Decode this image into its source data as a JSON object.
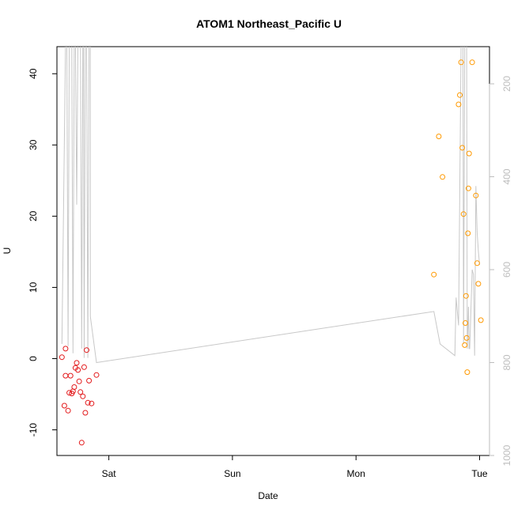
{
  "chart_data": {
    "type": "scatter",
    "title": "ATOM1 Northeast_Pacific U",
    "xlabel": "Date",
    "ylabel": "U",
    "x_ticks": [
      "Sat",
      "Sun",
      "Mon",
      "Tue"
    ],
    "x_tick_positions": [
      0.3,
      1.3,
      2.3,
      3.3
    ],
    "xlim": [
      -0.12,
      3.38
    ],
    "ylim": [
      -13.6,
      43.8
    ],
    "y_ticks": [
      -10,
      0,
      10,
      20,
      30,
      40
    ],
    "y2_ticks": [
      200,
      400,
      600,
      800,
      1000
    ],
    "y2lim": [
      1000,
      120
    ],
    "series": [
      {
        "color": "#e31a1c",
        "points": [
          {
            "x": -0.08,
            "y": 0.2
          },
          {
            "x": -0.06,
            "y": -6.6
          },
          {
            "x": -0.05,
            "y": 1.4
          },
          {
            "x": -0.05,
            "y": -2.4
          },
          {
            "x": -0.03,
            "y": -7.3
          },
          {
            "x": -0.02,
            "y": -4.8
          },
          {
            "x": -0.01,
            "y": -2.4
          },
          {
            "x": 0.0,
            "y": -4.9
          },
          {
            "x": 0.01,
            "y": -4.6
          },
          {
            "x": 0.02,
            "y": -4.0
          },
          {
            "x": 0.03,
            "y": -1.3
          },
          {
            "x": 0.04,
            "y": -0.6
          },
          {
            "x": 0.05,
            "y": -1.6
          },
          {
            "x": 0.06,
            "y": -3.2
          },
          {
            "x": 0.07,
            "y": -4.7
          },
          {
            "x": 0.08,
            "y": -11.8
          },
          {
            "x": 0.09,
            "y": -5.3
          },
          {
            "x": 0.1,
            "y": -1.2
          },
          {
            "x": 0.11,
            "y": -7.6
          },
          {
            "x": 0.12,
            "y": 1.2
          },
          {
            "x": 0.13,
            "y": -6.2
          },
          {
            "x": 0.14,
            "y": -3.1
          },
          {
            "x": 0.16,
            "y": -6.3
          },
          {
            "x": 0.2,
            "y": -2.3
          }
        ]
      },
      {
        "color": "#ff9900",
        "points": [
          {
            "x": 2.93,
            "y": 11.8
          },
          {
            "x": 2.97,
            "y": 31.2
          },
          {
            "x": 3.0,
            "y": 25.5
          },
          {
            "x": 3.13,
            "y": 35.7
          },
          {
            "x": 3.14,
            "y": 37.0
          },
          {
            "x": 3.15,
            "y": 41.6
          },
          {
            "x": 3.16,
            "y": 29.6
          },
          {
            "x": 3.17,
            "y": 20.3
          },
          {
            "x": 3.18,
            "y": 1.9
          },
          {
            "x": 3.185,
            "y": 5.0
          },
          {
            "x": 3.19,
            "y": 8.8
          },
          {
            "x": 3.195,
            "y": 2.9
          },
          {
            "x": 3.2,
            "y": -1.9
          },
          {
            "x": 3.205,
            "y": 17.6
          },
          {
            "x": 3.21,
            "y": 23.9
          },
          {
            "x": 3.215,
            "y": 28.8
          },
          {
            "x": 3.24,
            "y": 41.6
          },
          {
            "x": 3.27,
            "y": 22.9
          },
          {
            "x": 3.28,
            "y": 13.4
          },
          {
            "x": 3.29,
            "y": 10.5
          },
          {
            "x": 3.31,
            "y": 5.4
          }
        ]
      },
      {
        "color": "#c8c8c8",
        "axis": "right",
        "points": [
          {
            "x": -0.08,
            "y": 760
          },
          {
            "x": -0.05,
            "y": 110
          },
          {
            "x": -0.04,
            "y": 110
          },
          {
            "x": -0.03,
            "y": 765
          },
          {
            "x": -0.02,
            "y": 110
          },
          {
            "x": 0.0,
            "y": 110
          },
          {
            "x": 0.01,
            "y": 780
          },
          {
            "x": 0.02,
            "y": 110
          },
          {
            "x": 0.03,
            "y": 110
          },
          {
            "x": 0.04,
            "y": 460
          },
          {
            "x": 0.05,
            "y": 110
          },
          {
            "x": 0.07,
            "y": 110
          },
          {
            "x": 0.08,
            "y": 770
          },
          {
            "x": 0.09,
            "y": 110
          },
          {
            "x": 0.095,
            "y": 110
          },
          {
            "x": 0.1,
            "y": 790
          },
          {
            "x": 0.11,
            "y": 110
          },
          {
            "x": 0.12,
            "y": 110
          },
          {
            "x": 0.13,
            "y": 790
          },
          {
            "x": 0.14,
            "y": 110
          },
          {
            "x": 0.15,
            "y": 110
          },
          {
            "x": 0.15,
            "y": 700
          },
          {
            "x": 0.2,
            "y": 800
          },
          {
            "x": 2.93,
            "y": 690
          },
          {
            "x": 2.98,
            "y": 760
          },
          {
            "x": 3.1,
            "y": 785
          },
          {
            "x": 3.11,
            "y": 660
          },
          {
            "x": 3.13,
            "y": 720
          },
          {
            "x": 3.15,
            "y": 110
          },
          {
            "x": 3.165,
            "y": 110
          },
          {
            "x": 3.17,
            "y": 760
          },
          {
            "x": 3.18,
            "y": 110
          },
          {
            "x": 3.195,
            "y": 110
          },
          {
            "x": 3.2,
            "y": 770
          },
          {
            "x": 3.21,
            "y": 680
          },
          {
            "x": 3.215,
            "y": 770
          },
          {
            "x": 3.22,
            "y": 770
          },
          {
            "x": 3.24,
            "y": 600
          },
          {
            "x": 3.25,
            "y": 610
          },
          {
            "x": 3.26,
            "y": 785
          },
          {
            "x": 3.27,
            "y": 420
          },
          {
            "x": 3.28,
            "y": 520
          },
          {
            "x": 3.29,
            "y": 560
          },
          {
            "x": 3.3,
            "y": 590
          }
        ]
      }
    ]
  }
}
